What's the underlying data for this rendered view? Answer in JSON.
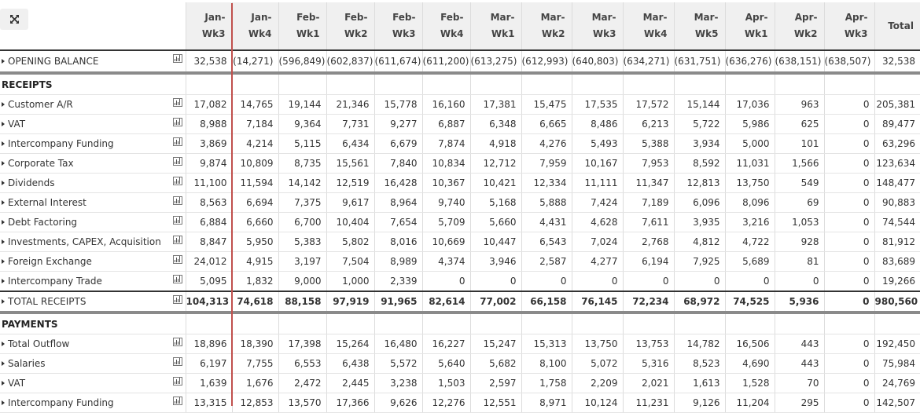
{
  "toolbar": {
    "expand_icon": "expand-arrows-icon"
  },
  "columns": [
    {
      "l1": "Jan-",
      "l2": "Wk3"
    },
    {
      "l1": "Jan-",
      "l2": "Wk4"
    },
    {
      "l1": "Feb-",
      "l2": "Wk1"
    },
    {
      "l1": "Feb-",
      "l2": "Wk2"
    },
    {
      "l1": "Feb-",
      "l2": "Wk3"
    },
    {
      "l1": "Feb-",
      "l2": "Wk4"
    },
    {
      "l1": "Mar-",
      "l2": "Wk1"
    },
    {
      "l1": "Mar-",
      "l2": "Wk2"
    },
    {
      "l1": "Mar-",
      "l2": "Wk3"
    },
    {
      "l1": "Mar-",
      "l2": "Wk4"
    },
    {
      "l1": "Mar-",
      "l2": "Wk5"
    },
    {
      "l1": "Apr-",
      "l2": "Wk1"
    },
    {
      "l1": "Apr-",
      "l2": "Wk2"
    },
    {
      "l1": "Apr-",
      "l2": "Wk3"
    },
    {
      "l1": "",
      "l2": "Total"
    }
  ],
  "opening_balance": {
    "label": "OPENING BALANCE",
    "values": [
      "32,538",
      "(14,271)",
      "(596,849)",
      "(602,837)",
      "(611,674)",
      "(611,200)",
      "(613,275)",
      "(612,993)",
      "(640,803)",
      "(634,271)",
      "(631,751)",
      "(636,276)",
      "(638,151)",
      "(638,507)",
      "32,538"
    ]
  },
  "receipts": {
    "header": "RECEIPTS",
    "rows": [
      {
        "label": "Customer A/R",
        "values": [
          "17,082",
          "14,765",
          "19,144",
          "21,346",
          "15,778",
          "16,160",
          "17,381",
          "15,475",
          "17,535",
          "17,572",
          "15,144",
          "17,036",
          "963",
          "0",
          "205,381"
        ]
      },
      {
        "label": "VAT",
        "values": [
          "8,988",
          "7,184",
          "9,364",
          "7,731",
          "9,277",
          "6,887",
          "6,348",
          "6,665",
          "8,486",
          "6,213",
          "5,722",
          "5,986",
          "625",
          "0",
          "89,477"
        ]
      },
      {
        "label": "Intercompany Funding",
        "values": [
          "3,869",
          "4,214",
          "5,115",
          "6,434",
          "6,679",
          "7,874",
          "4,918",
          "4,276",
          "5,493",
          "5,388",
          "3,934",
          "5,000",
          "101",
          "0",
          "63,296"
        ]
      },
      {
        "label": "Corporate Tax",
        "values": [
          "9,874",
          "10,809",
          "8,735",
          "15,561",
          "7,840",
          "10,834",
          "12,712",
          "7,959",
          "10,167",
          "7,953",
          "8,592",
          "11,031",
          "1,566",
          "0",
          "123,634"
        ]
      },
      {
        "label": "Dividends",
        "values": [
          "11,100",
          "11,594",
          "14,142",
          "12,519",
          "16,428",
          "10,367",
          "10,421",
          "12,334",
          "11,111",
          "11,347",
          "12,813",
          "13,750",
          "549",
          "0",
          "148,477"
        ]
      },
      {
        "label": "External Interest",
        "values": [
          "8,563",
          "6,694",
          "7,375",
          "9,617",
          "8,964",
          "9,740",
          "5,168",
          "5,888",
          "7,424",
          "7,189",
          "6,096",
          "8,096",
          "69",
          "0",
          "90,883"
        ]
      },
      {
        "label": "Debt Factoring",
        "values": [
          "6,884",
          "6,660",
          "6,700",
          "10,404",
          "7,654",
          "5,709",
          "5,660",
          "4,431",
          "4,628",
          "7,611",
          "3,935",
          "3,216",
          "1,053",
          "0",
          "74,544"
        ]
      },
      {
        "label": "Investments, CAPEX, Acquisition",
        "values": [
          "8,847",
          "5,950",
          "5,383",
          "5,802",
          "8,016",
          "10,669",
          "10,447",
          "6,543",
          "7,024",
          "2,768",
          "4,812",
          "4,722",
          "928",
          "0",
          "81,912"
        ]
      },
      {
        "label": "Foreign Exchange",
        "values": [
          "24,012",
          "4,915",
          "3,197",
          "7,504",
          "8,989",
          "4,374",
          "3,946",
          "2,587",
          "4,277",
          "6,194",
          "7,925",
          "5,689",
          "81",
          "0",
          "83,689"
        ]
      },
      {
        "label": "Intercompany Trade",
        "values": [
          "5,095",
          "1,832",
          "9,000",
          "1,000",
          "2,339",
          "0",
          "0",
          "0",
          "0",
          "0",
          "0",
          "0",
          "0",
          "0",
          "19,266"
        ]
      }
    ],
    "total": {
      "label": "TOTAL RECEIPTS",
      "values": [
        "104,313",
        "74,618",
        "88,158",
        "97,919",
        "91,965",
        "82,614",
        "77,002",
        "66,158",
        "76,145",
        "72,234",
        "68,972",
        "74,525",
        "5,936",
        "0",
        "980,560"
      ]
    }
  },
  "payments": {
    "header": "PAYMENTS",
    "rows": [
      {
        "label": "Total Outflow",
        "values": [
          "18,896",
          "18,390",
          "17,398",
          "15,264",
          "16,480",
          "16,227",
          "15,247",
          "15,313",
          "13,750",
          "13,753",
          "14,782",
          "16,506",
          "443",
          "0",
          "192,450"
        ]
      },
      {
        "label": "Salaries",
        "values": [
          "6,197",
          "7,755",
          "6,553",
          "6,438",
          "5,572",
          "5,640",
          "5,682",
          "8,100",
          "5,072",
          "5,316",
          "8,523",
          "4,690",
          "443",
          "0",
          "75,984"
        ]
      },
      {
        "label": "VAT",
        "values": [
          "1,639",
          "1,676",
          "2,472",
          "2,445",
          "3,238",
          "1,503",
          "2,597",
          "1,758",
          "2,209",
          "2,021",
          "1,613",
          "1,528",
          "70",
          "0",
          "24,769"
        ]
      },
      {
        "label": "Intercompany Funding",
        "values": [
          "13,315",
          "12,853",
          "13,570",
          "17,366",
          "9,626",
          "12,276",
          "12,551",
          "8,971",
          "10,124",
          "11,231",
          "9,126",
          "11,204",
          "295",
          "0",
          "142,507"
        ]
      }
    ]
  },
  "colors": {
    "current_week_marker": "#c0504d",
    "header_bg": "#f0f0f0",
    "grid": "#dcdcdc"
  }
}
